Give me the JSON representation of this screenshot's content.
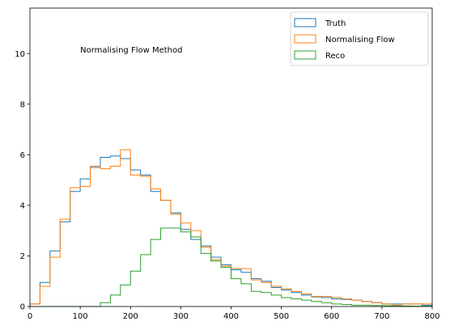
{
  "chart_data": {
    "type": "histogram-step",
    "annotation": "Normalising Flow Method",
    "xlim": [
      0,
      800
    ],
    "ylim": [
      0,
      11.8
    ],
    "xticks": [
      0,
      100,
      200,
      300,
      400,
      500,
      600,
      700,
      800
    ],
    "yticks": [
      0,
      2,
      4,
      6,
      8,
      10
    ],
    "legend_position": "top-right",
    "bin_edges": [
      0,
      20,
      40,
      60,
      80,
      100,
      120,
      140,
      160,
      180,
      200,
      220,
      240,
      260,
      280,
      300,
      320,
      340,
      360,
      380,
      400,
      420,
      440,
      460,
      480,
      500,
      520,
      540,
      560,
      580,
      600,
      620,
      640,
      660,
      680,
      700,
      720,
      740,
      760,
      780,
      800
    ],
    "series": [
      {
        "name": "Truth",
        "color": "#1f77b4",
        "values": [
          0.1,
          0.95,
          2.2,
          3.35,
          4.55,
          5.05,
          5.5,
          5.9,
          5.95,
          5.85,
          5.4,
          5.2,
          4.55,
          4.2,
          3.7,
          3.05,
          2.65,
          2.4,
          1.95,
          1.65,
          1.45,
          1.35,
          1.1,
          1.0,
          0.75,
          0.65,
          0.55,
          0.45,
          0.38,
          0.35,
          0.3,
          0.28,
          0.25,
          0.2,
          0.15,
          0.1,
          0.1,
          0.1,
          0.1,
          0.05
        ]
      },
      {
        "name": "Normalising Flow",
        "color": "#ff7f0e",
        "values": [
          0.1,
          0.8,
          1.95,
          3.45,
          4.7,
          4.75,
          5.55,
          5.45,
          5.55,
          6.2,
          5.2,
          5.15,
          4.65,
          4.2,
          3.65,
          3.3,
          3.0,
          2.35,
          1.85,
          1.6,
          1.5,
          1.5,
          1.05,
          0.95,
          0.8,
          0.7,
          0.6,
          0.5,
          0.4,
          0.4,
          0.35,
          0.3,
          0.25,
          0.2,
          0.15,
          0.1,
          0.05,
          0.1,
          0.1,
          0.1
        ]
      },
      {
        "name": "Reco",
        "color": "#2ca02c",
        "values": [
          0,
          0,
          0,
          0,
          0,
          0,
          0,
          0.15,
          0.45,
          0.85,
          1.4,
          2.05,
          2.65,
          3.1,
          3.1,
          2.95,
          2.75,
          2.1,
          1.8,
          1.55,
          1.1,
          0.9,
          0.6,
          0.55,
          0.45,
          0.35,
          0.3,
          0.25,
          0.2,
          0.15,
          0.1,
          0.08,
          0.05,
          0.05,
          0.04,
          0.03,
          0.02,
          0.02,
          0.01,
          0.01
        ]
      }
    ]
  }
}
